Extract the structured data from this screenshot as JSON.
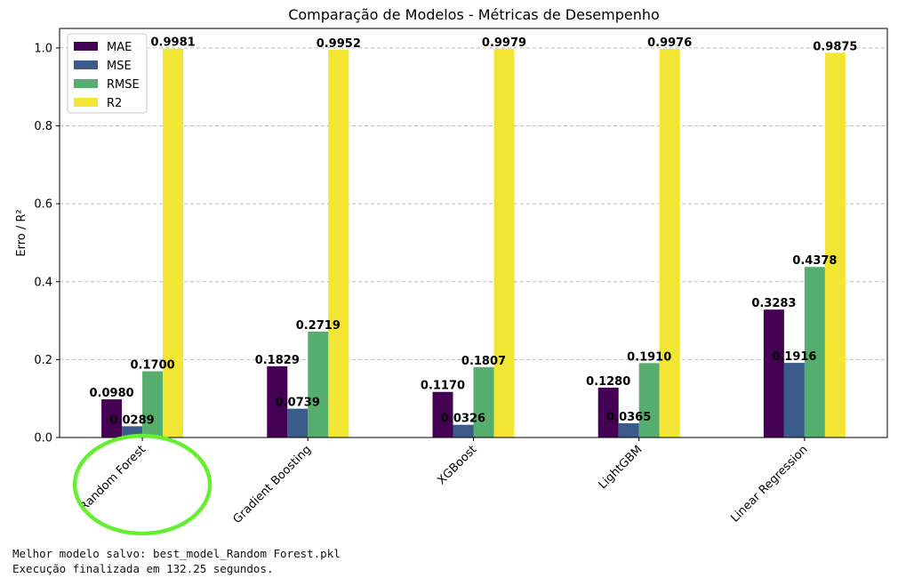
{
  "chart_data": {
    "type": "bar",
    "title": "Comparação de Modelos - Métricas de Desempenho",
    "xlabel": "",
    "ylabel": "Erro / R²",
    "ylim": [
      0,
      1.05
    ],
    "yticks": [
      0.0,
      0.2,
      0.4,
      0.6,
      0.8,
      1.0
    ],
    "ytick_labels": [
      "0.0",
      "0.2",
      "0.4",
      "0.6",
      "0.8",
      "1.0"
    ],
    "grid": "horizontal dashed",
    "legend_position": "top-left",
    "categories": [
      "Random Forest",
      "Gradient Boosting",
      "XGBoost",
      "LightGBM",
      "Linear Regression"
    ],
    "series": [
      {
        "name": "MAE",
        "color": "#440154",
        "values": [
          0.098,
          0.1829,
          0.117,
          0.128,
          0.3283
        ],
        "labels": [
          "0.0980",
          "0.1829",
          "0.1170",
          "0.1280",
          "0.3283"
        ]
      },
      {
        "name": "MSE",
        "color": "#3b5c8a",
        "values": [
          0.0289,
          0.0739,
          0.0326,
          0.0365,
          0.1916
        ],
        "labels": [
          "0.0289",
          "0.0739",
          "0.0326",
          "0.0365",
          "0.1916"
        ]
      },
      {
        "name": "RMSE",
        "color": "#55ad6e",
        "values": [
          0.17,
          0.2719,
          0.1807,
          0.191,
          0.4378
        ],
        "labels": [
          "0.1700",
          "0.2719",
          "0.1807",
          "0.1910",
          "0.4378"
        ]
      },
      {
        "name": "R2",
        "color": "#f2e533",
        "values": [
          0.9981,
          0.9952,
          0.9979,
          0.9976,
          0.9875
        ],
        "labels": [
          "0.9981",
          "0.9952",
          "0.9979",
          "0.9976",
          "0.9875"
        ]
      }
    ],
    "annotation": {
      "type": "circle",
      "target_category": "Random Forest",
      "color": "#66ee33"
    }
  },
  "console": {
    "line1": "Melhor modelo salvo: best_model_Random Forest.pkl",
    "line2": "Execução finalizada em 132.25 segundos."
  }
}
